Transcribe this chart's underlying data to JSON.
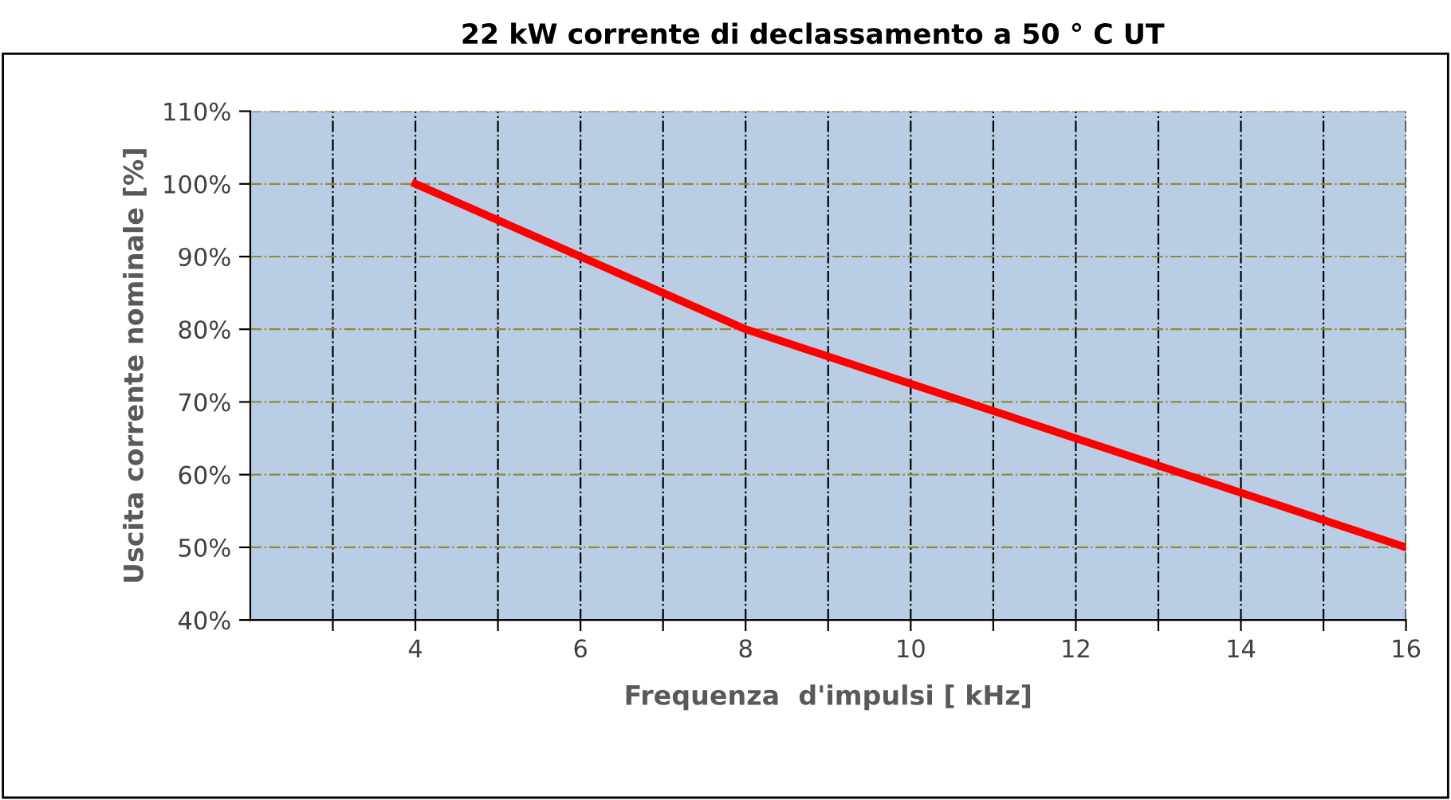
{
  "chart_data": {
    "type": "line",
    "title": "22 kW corrente di declassamento a 50 ° C UT",
    "xlabel": "Frequenza  d'impulsi [ kHz]",
    "ylabel": "Uscita corrente nominale [%]",
    "x": [
      4,
      6,
      8,
      10,
      12,
      14,
      16
    ],
    "series": [
      {
        "color": "#ff0000",
        "values": [
          100,
          90,
          80,
          72.5,
          65,
          57.5,
          50
        ]
      }
    ],
    "xlim": [
      2,
      16
    ],
    "xticks": [
      {
        "value": 3,
        "label": null
      },
      4,
      {
        "value": 5,
        "label": null
      },
      6,
      {
        "value": 7,
        "label": null
      },
      8,
      {
        "value": 9,
        "label": null
      },
      10,
      {
        "value": 11,
        "label": null
      },
      12,
      {
        "value": 13,
        "label": null
      },
      14,
      {
        "value": 15,
        "label": null
      },
      16
    ],
    "ylim": [
      40,
      110
    ],
    "yticks": [
      {
        "value": 40,
        "label": "40%"
      },
      {
        "value": 50,
        "label": "50%"
      },
      {
        "value": 60,
        "label": "60%"
      },
      {
        "value": 70,
        "label": "70%"
      },
      {
        "value": 80,
        "label": "80%"
      },
      {
        "value": 90,
        "label": "90%"
      },
      {
        "value": 100,
        "label": "100%"
      },
      {
        "value": 110,
        "label": "110%"
      }
    ],
    "grid": true,
    "marker": "none",
    "line_style": "solid"
  }
}
